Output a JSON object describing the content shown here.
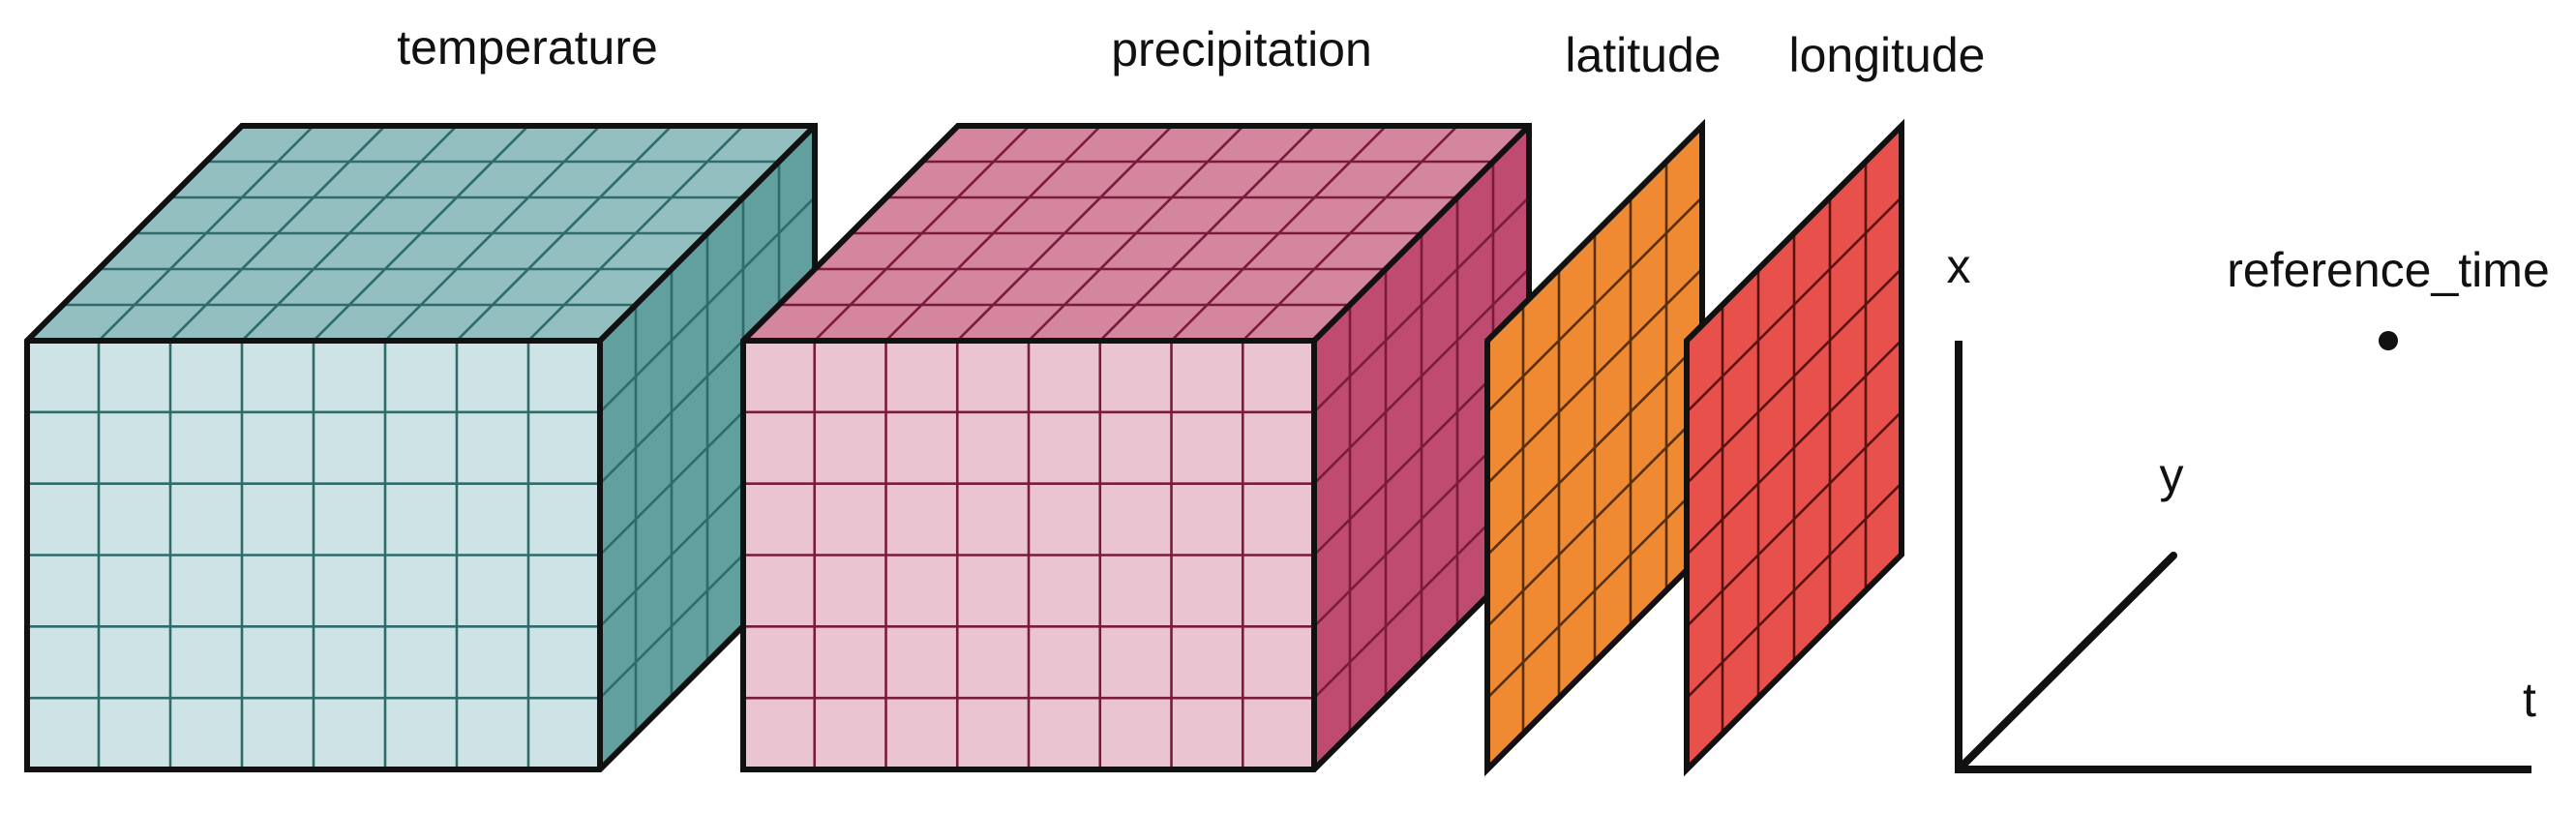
{
  "variables": [
    {
      "name": "temperature",
      "kind": "cube",
      "colors": {
        "front": "#cde3e6",
        "top": "#94bfc0",
        "side": "#62a0a0",
        "grid": "#2f6b6a"
      }
    },
    {
      "name": "precipitation",
      "kind": "cube",
      "colors": {
        "front": "#ebc4d2",
        "top": "#d5869f",
        "side": "#bf4b70",
        "grid": "#7a1b3c"
      }
    },
    {
      "name": "latitude",
      "kind": "panel",
      "colors": {
        "fill": "#ef8a32",
        "grid": "#5a2e08"
      }
    },
    {
      "name": "longitude",
      "kind": "panel",
      "colors": {
        "fill": "#e8514b",
        "grid": "#5a1210"
      }
    }
  ],
  "axes": {
    "x_label": "x",
    "y_label": "y",
    "t_label": "t",
    "scalar_label": "reference_time"
  }
}
